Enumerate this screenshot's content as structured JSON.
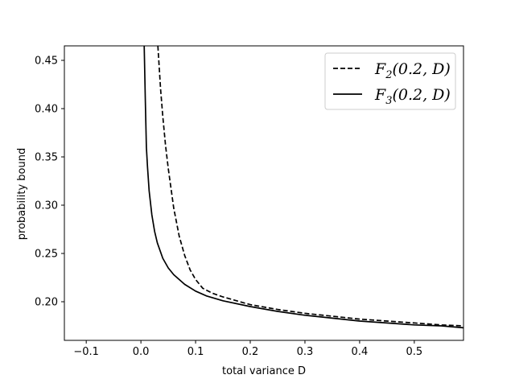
{
  "chart_data": {
    "type": "line",
    "title": "",
    "xlabel": "total variance D",
    "ylabel": "probability bound",
    "xlim": [
      -0.14,
      0.59
    ],
    "ylim": [
      0.16,
      0.465
    ],
    "x_ticks": [
      -0.1,
      0.0,
      0.1,
      0.2,
      0.3,
      0.4,
      0.5
    ],
    "x_tick_labels": [
      "−0.1",
      "0.0",
      "0.1",
      "0.2",
      "0.3",
      "0.4",
      "0.5"
    ],
    "y_ticks": [
      0.2,
      0.25,
      0.3,
      0.35,
      0.4,
      0.45
    ],
    "y_tick_labels": [
      "0.20",
      "0.25",
      "0.30",
      "0.35",
      "0.40",
      "0.45"
    ],
    "grid": false,
    "legend_position": "top-right",
    "series": [
      {
        "name": "F₂(0.2, D)",
        "style": "dashed",
        "color": "#000000",
        "x": [
          0.031,
          0.036,
          0.04,
          0.045,
          0.05,
          0.06,
          0.07,
          0.08,
          0.09,
          0.1,
          0.113,
          0.13,
          0.15,
          0.2,
          0.25,
          0.3,
          0.35,
          0.4,
          0.45,
          0.5,
          0.55,
          0.59
        ],
        "y": [
          0.465,
          0.42,
          0.392,
          0.362,
          0.338,
          0.297,
          0.268,
          0.248,
          0.233,
          0.223,
          0.214,
          0.209,
          0.205,
          0.197,
          0.192,
          0.188,
          0.185,
          0.182,
          0.18,
          0.178,
          0.176,
          0.175
        ]
      },
      {
        "name": "F₃(0.2, D)",
        "style": "solid",
        "color": "#000000",
        "x": [
          0.006,
          0.008,
          0.01,
          0.012,
          0.015,
          0.02,
          0.025,
          0.03,
          0.04,
          0.05,
          0.06,
          0.08,
          0.1,
          0.12,
          0.15,
          0.2,
          0.25,
          0.3,
          0.35,
          0.4,
          0.45,
          0.5,
          0.55,
          0.59
        ],
        "y": [
          0.465,
          0.41,
          0.36,
          0.34,
          0.315,
          0.29,
          0.273,
          0.261,
          0.245,
          0.235,
          0.228,
          0.218,
          0.211,
          0.206,
          0.201,
          0.195,
          0.19,
          0.186,
          0.183,
          0.18,
          0.178,
          0.176,
          0.175,
          0.173
        ]
      }
    ]
  },
  "legend": {
    "entries": [
      {
        "base": "F",
        "sub": "2",
        "args": "(0.2, D)"
      },
      {
        "base": "F",
        "sub": "3",
        "args": "(0.2, D)"
      }
    ]
  }
}
